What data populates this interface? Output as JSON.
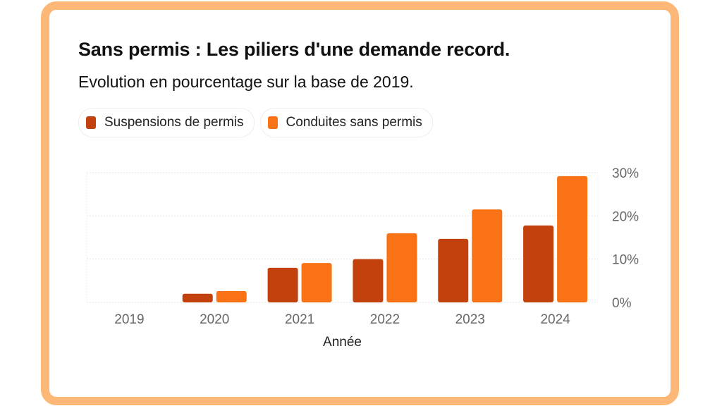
{
  "chart_data": {
    "type": "bar",
    "title": "Sans permis : Les piliers d'une demande record.",
    "subtitle": "Evolution en pourcentage sur la base de 2019.",
    "xlabel": "Année",
    "ylabel": "",
    "categories": [
      "2019",
      "2020",
      "2021",
      "2022",
      "2023",
      "2024"
    ],
    "series": [
      {
        "name": "Suspensions de permis",
        "color": "#c2410c",
        "values": [
          0,
          2,
          8,
          10,
          14.7,
          17.8
        ]
      },
      {
        "name": "Conduites sans permis",
        "color": "#f97316",
        "values": [
          0,
          2.6,
          9.1,
          16,
          21.5,
          29.2
        ]
      }
    ],
    "ylim": [
      0,
      30
    ],
    "yticks": [
      "0%",
      "10%",
      "20%",
      "30%"
    ],
    "ytick_values": [
      0,
      10,
      20,
      30
    ],
    "y_axis_side": "right",
    "grid": true,
    "legend_position": "top-left"
  },
  "frame_color": "#fdb877"
}
